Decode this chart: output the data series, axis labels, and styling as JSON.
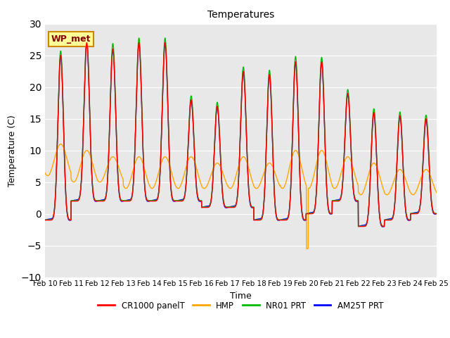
{
  "title": "Temperatures",
  "xlabel": "Time",
  "ylabel": "Temperature (C)",
  "ylim": [
    -10,
    30
  ],
  "annotation": "WP_met",
  "x_tick_labels": [
    "Feb 10",
    "Feb 11",
    "Feb 12",
    "Feb 13",
    "Feb 14",
    "Feb 15",
    "Feb 16",
    "Feb 17",
    "Feb 18",
    "Feb 19",
    "Feb 20",
    "Feb 21",
    "Feb 22",
    "Feb 23",
    "Feb 24",
    "Feb 25"
  ],
  "legend_labels": [
    "CR1000 panelT",
    "HMP",
    "NR01 PRT",
    "AM25T PRT"
  ],
  "legend_colors": [
    "#ff0000",
    "#ffa500",
    "#00bb00",
    "#0000ff"
  ],
  "bg_color": "#e8e8e8",
  "annotation_bg": "#ffff99",
  "annotation_border": "#cc8800",
  "annotation_text_color": "#880000",
  "day_maxima_cr1000": [
    25,
    27,
    26,
    27,
    27,
    18,
    17,
    22.5,
    22,
    24,
    24,
    19,
    16,
    15.5,
    15
  ],
  "night_minima_cr1000": [
    -1,
    2,
    2,
    2,
    2,
    2,
    1,
    1,
    -1,
    -1,
    0,
    2,
    -2,
    -1,
    0
  ],
  "day_maxima_nr01": [
    25.5,
    27.5,
    27,
    27.5,
    27.5,
    18.5,
    17.5,
    23,
    22.5,
    25,
    24.5,
    19.5,
    16.5,
    16,
    15.5
  ],
  "night_minima_nr01": [
    -1.5,
    1.5,
    1.5,
    1.5,
    1.5,
    1.5,
    0.5,
    0.5,
    -1.5,
    -1.5,
    -0.5,
    1.5,
    -2.5,
    -1.5,
    -0.5
  ],
  "day_maxima_hmp": [
    11,
    10,
    9,
    9,
    9,
    9,
    8,
    9,
    8,
    10,
    10,
    9,
    8,
    7,
    7
  ],
  "night_minima_hmp": [
    6,
    5,
    5,
    4,
    4,
    4,
    4,
    4,
    4,
    4,
    4,
    4,
    3,
    3,
    3
  ],
  "hmp_spike_day": 10,
  "hmp_spike_value": -5.5,
  "peak_sharpness": 4.5,
  "pts_per_day": 144
}
